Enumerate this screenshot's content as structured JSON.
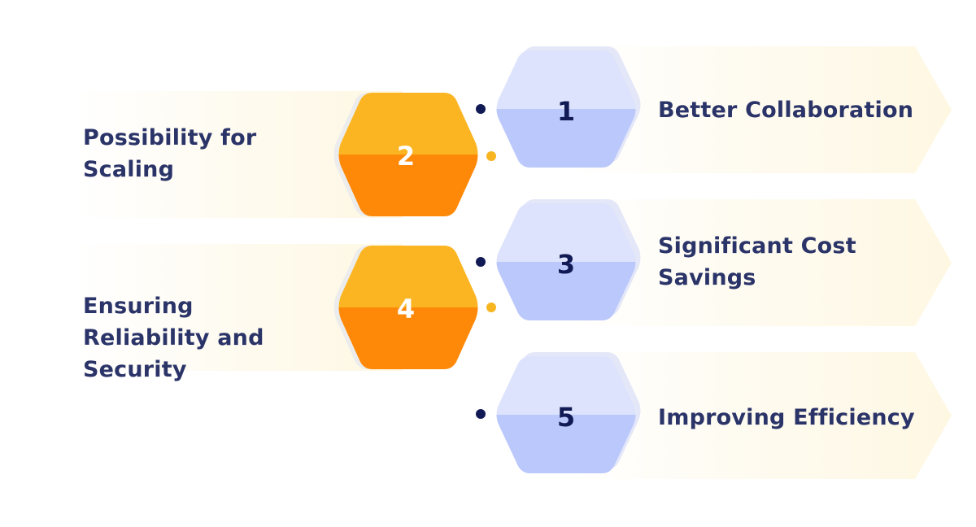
{
  "steps": [
    {
      "number": "1",
      "label": "Better Collaboration",
      "side": "right",
      "color": "blue"
    },
    {
      "number": "2",
      "label": "Possibility for Scaling",
      "side": "left",
      "color": "orange"
    },
    {
      "number": "3",
      "label": "Significant Cost Savings",
      "side": "right",
      "color": "blue"
    },
    {
      "number": "4",
      "label": "Ensuring Reliability and Security",
      "side": "left",
      "color": "orange"
    },
    {
      "number": "5",
      "label": "Improving Efficiency",
      "side": "right",
      "color": "blue"
    }
  ],
  "colors": {
    "blue_top": "#dde3fc",
    "blue_bottom": "#bbc8fb",
    "orange_top": "#fbb522",
    "orange_bottom": "#fe8908",
    "text_dark": "#2b3468",
    "dot_navy": "#121a55",
    "dot_gold": "#f7b521",
    "band": "#fef9ea"
  }
}
